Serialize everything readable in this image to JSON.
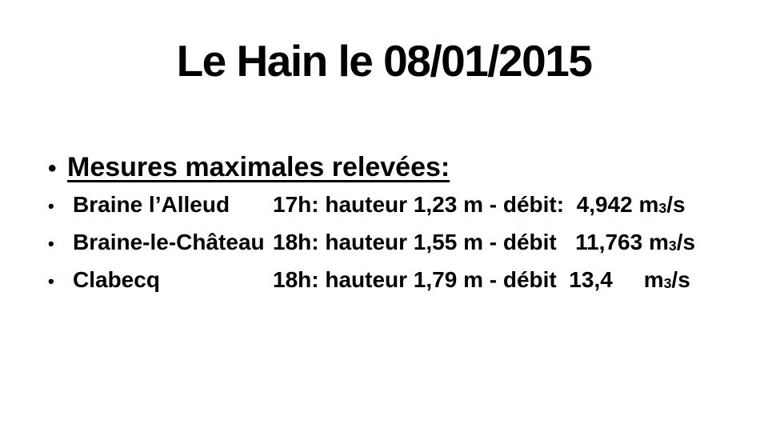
{
  "slide": {
    "title": "Le Hain le 08/01/2015",
    "bullet_char": "•",
    "heading": "Mesures maximales relevées:",
    "rows": [
      {
        "station": "Braine l’Alleud",
        "measurement": "17h: hauteur 1,23 m - débit:  4,942 ",
        "unit_base": "m",
        "unit_sub": "3",
        "unit_rest": "/s"
      },
      {
        "station": "Braine-le-Château",
        "measurement": "18h: hauteur 1,55 m - débit   11,763 ",
        "unit_base": "m",
        "unit_sub": "3",
        "unit_rest": "/s"
      },
      {
        "station": "Clabecq",
        "measurement": "18h: hauteur 1,79 m - débit  13,4     ",
        "unit_base": "m",
        "unit_sub": "3",
        "unit_rest": "/s"
      }
    ],
    "colors": {
      "text": "#000000",
      "background": "#ffffff"
    }
  }
}
